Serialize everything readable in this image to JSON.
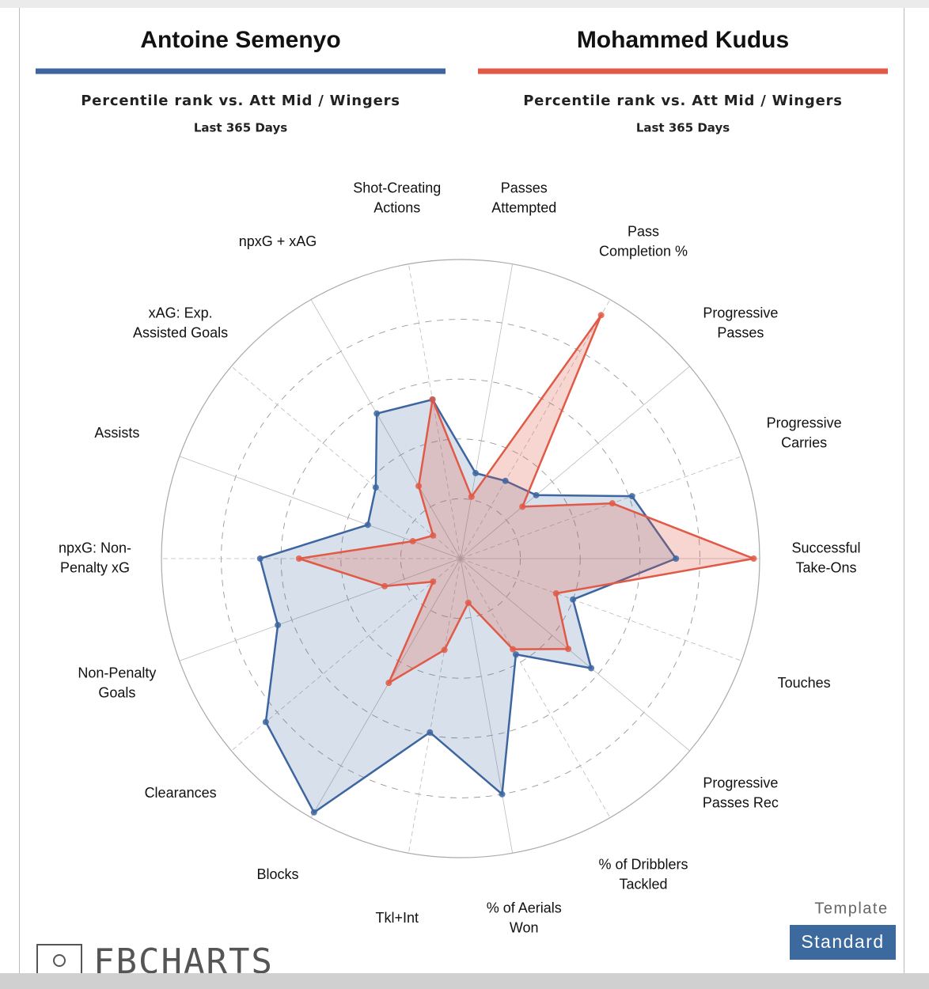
{
  "chart_data": {
    "type": "radar",
    "subtitle": "Percentile rank vs. Att Mid / Wingers",
    "period": "Last 365 Days",
    "categories": [
      "Successful\nTake-Ons",
      "Progressive\nCarries",
      "Progressive\nPasses",
      "Pass\nCompletion %",
      "Passes\nAttempted",
      "Shot-Creating\nActions",
      "npxG + xAG",
      "xAG: Exp.\nAssisted Goals",
      "Assists",
      "npxG: Non-\nPenalty xG",
      "Non-Penalty\nGoals",
      "Clearances",
      "Blocks",
      "Tkl+Int",
      "% of Aerials\nWon",
      "% of Dribblers\nTackled",
      "Progressive\nPasses Rec",
      "Touches"
    ],
    "series": [
      {
        "name": "Antoine Semenyo",
        "color": "#3d66a0",
        "values": [
          72,
          61,
          33,
          30,
          29,
          54,
          56,
          37,
          33,
          67,
          65,
          85,
          98,
          59,
          80,
          37,
          57,
          40
        ]
      },
      {
        "name": "Mohammed Kudus",
        "color": "#e05a47",
        "values": [
          98,
          54,
          27,
          94,
          21,
          54,
          28,
          12,
          17,
          54,
          27,
          12,
          48,
          31,
          15,
          35,
          47,
          34
        ]
      }
    ],
    "rlim": [
      0,
      100
    ],
    "rticks": [
      20,
      40,
      60,
      80,
      100
    ]
  },
  "template": {
    "label": "Template",
    "value": "Standard"
  },
  "logo": "FBCHARTS"
}
